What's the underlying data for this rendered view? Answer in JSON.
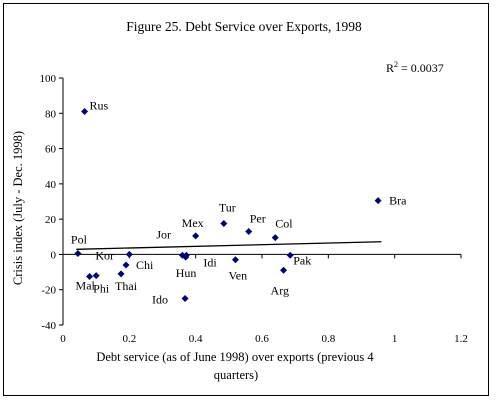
{
  "chart_data": {
    "type": "scatter",
    "title": "Figure 25. Debt Service over Exports, 1998",
    "xlabel_line1": "Debt service (as of June 1998) over exports (previous 4",
    "xlabel_line2": "quarters)",
    "ylabel": "Crisis index (July - Dec. 1998)",
    "annotation": {
      "r2_prefix": "R",
      "r2_exp": "2",
      "r2_value": " = 0.0037"
    },
    "xlim": [
      0,
      1.2
    ],
    "ylim": [
      -40,
      100
    ],
    "xticks": [
      "0",
      "0.2",
      "0.4",
      "0.6",
      "0.8",
      "1",
      "1.2"
    ],
    "xtick_values": [
      0,
      0.2,
      0.4,
      0.6,
      0.8,
      1.0,
      1.2
    ],
    "yticks": [
      "100",
      "80",
      "60",
      "40",
      "20",
      "0",
      "-20",
      "-40"
    ],
    "ytick_values": [
      100,
      80,
      60,
      40,
      20,
      0,
      -20,
      -40
    ],
    "grid": false,
    "legend": "none",
    "marker_color": "#000080",
    "trendline": {
      "x": [
        0.04,
        0.96
      ],
      "y": [
        2.9,
        7.2
      ]
    },
    "points": [
      {
        "label": "Rus",
        "x": 0.065,
        "y": 81
      },
      {
        "label": "Pol",
        "x": 0.045,
        "y": 0.5
      },
      {
        "label": "Mal",
        "x": 0.08,
        "y": -12.5
      },
      {
        "label": "Phi",
        "x": 0.1,
        "y": -12
      },
      {
        "label": "Kor",
        "x": 0.2,
        "y": 0
      },
      {
        "label": "Thai",
        "x": 0.175,
        "y": -11
      },
      {
        "label": "Chi",
        "x": 0.19,
        "y": -6
      },
      {
        "label": "Jor",
        "x": 0.36,
        "y": -0.5
      },
      {
        "label": "Hun",
        "x": 0.37,
        "y": -1.5
      },
      {
        "label": "Ido",
        "x": 0.368,
        "y": -25
      },
      {
        "label": "Mex",
        "x": 0.4,
        "y": 10.5
      },
      {
        "label": "Idi",
        "x": 0.372,
        "y": -0.5
      },
      {
        "label": "Tur",
        "x": 0.485,
        "y": 17.5
      },
      {
        "label": "Ven",
        "x": 0.52,
        "y": -3
      },
      {
        "label": "Per",
        "x": 0.56,
        "y": 13
      },
      {
        "label": "Col",
        "x": 0.64,
        "y": 9.5
      },
      {
        "label": "Pak",
        "x": 0.685,
        "y": -0.5
      },
      {
        "label": "Arg",
        "x": 0.665,
        "y": -9
      },
      {
        "label": "Bra",
        "x": 0.95,
        "y": 30.5
      }
    ]
  }
}
